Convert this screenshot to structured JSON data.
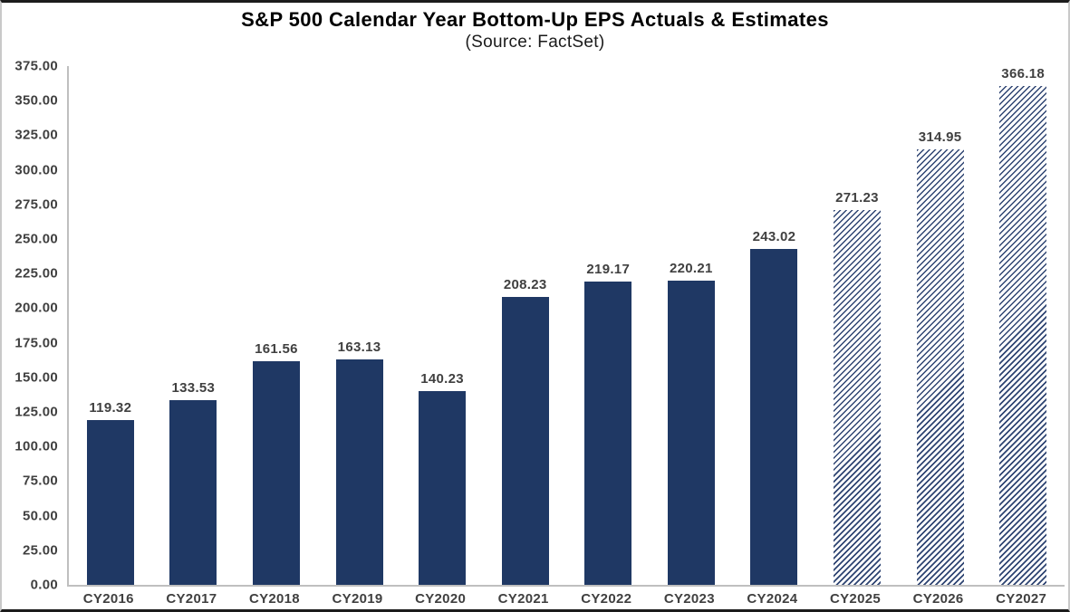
{
  "chart_data": {
    "type": "bar",
    "title": "S&P 500 Calendar Year Bottom-Up EPS Actuals & Estimates",
    "subtitle": "(Source: FactSet)",
    "categories": [
      "CY2016",
      "CY2017",
      "CY2018",
      "CY2019",
      "CY2020",
      "CY2021",
      "CY2022",
      "CY2023",
      "CY2024",
      "CY2025",
      "CY2026",
      "CY2027"
    ],
    "values": [
      119.32,
      133.53,
      161.56,
      163.13,
      140.23,
      208.23,
      219.17,
      220.21,
      243.02,
      271.23,
      314.95,
      366.18
    ],
    "value_labels": [
      "119.32",
      "133.53",
      "161.56",
      "163.13",
      "140.23",
      "208.23",
      "219.17",
      "220.21",
      "243.02",
      "271.23",
      "314.95",
      "366.18"
    ],
    "is_estimate": [
      false,
      false,
      false,
      false,
      false,
      false,
      false,
      false,
      false,
      true,
      true,
      true
    ],
    "bar_style_legend": {
      "actual": "solid fill",
      "estimate": "diagonal hatch fill"
    },
    "xlabel": "",
    "ylabel": "",
    "ylim": [
      0,
      375
    ],
    "ytick_step": 25,
    "ytick_labels": [
      "0.00",
      "25.00",
      "50.00",
      "75.00",
      "100.00",
      "125.00",
      "150.00",
      "175.00",
      "200.00",
      "225.00",
      "250.00",
      "275.00",
      "300.00",
      "325.00",
      "350.00",
      "375.00"
    ],
    "grid": false,
    "legend_position": "none",
    "colors": {
      "actual_bar": "#1F3864",
      "estimate_hatch": "#2E4472",
      "axis_line": "#BFBFBF",
      "label_text": "#404040",
      "title_text": "#000000",
      "background": "#FFFFFF"
    }
  }
}
